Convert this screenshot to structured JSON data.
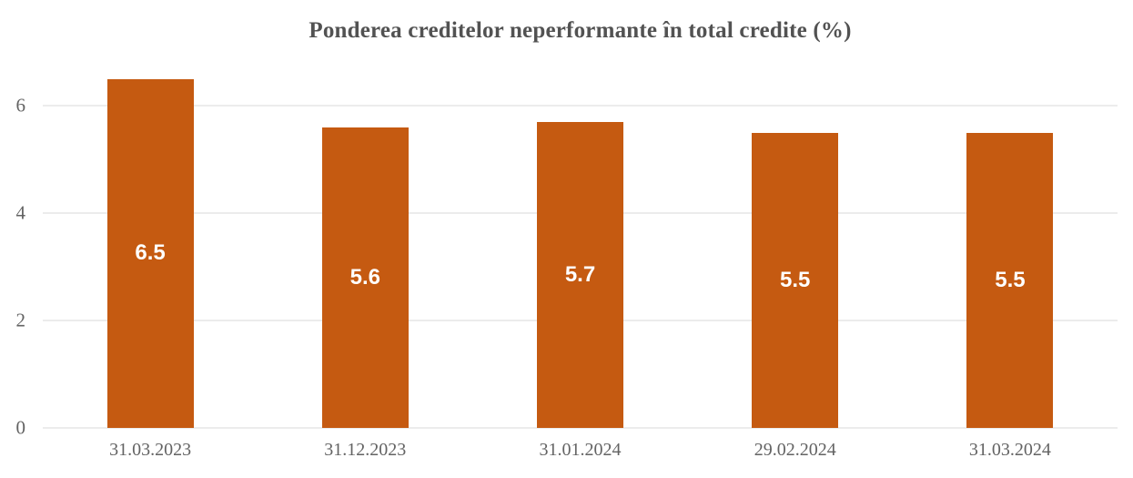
{
  "chart_data": {
    "type": "bar",
    "title": "Ponderea creditelor neperformante în total credite (%)",
    "categories": [
      "31.03.2023",
      "31.12.2023",
      "31.01.2024",
      "29.02.2024",
      "31.03.2024"
    ],
    "values": [
      6.5,
      5.6,
      5.7,
      5.5,
      5.5
    ],
    "data_labels": [
      "6.5",
      "5.6",
      "5.7",
      "5.5",
      "5.5"
    ],
    "xlabel": "",
    "ylabel": "",
    "yticks": [
      0,
      2,
      4,
      6
    ],
    "ylim": [
      0,
      6.7
    ],
    "grid": true,
    "legend": "none",
    "colors": {
      "bar": "#C55A11",
      "data_label": "#FFFFFF",
      "gridline": "#D9D9D9",
      "axis_text": "#636363",
      "title_text": "#525252",
      "background": "#FFFFFF"
    }
  }
}
